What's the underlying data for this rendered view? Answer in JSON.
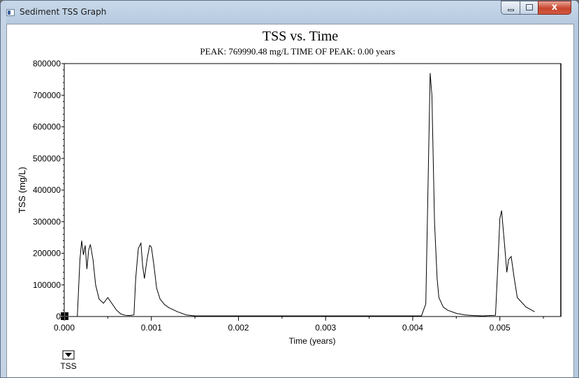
{
  "window": {
    "title": "Sediment TSS Graph",
    "controls": {
      "minimize": "minimize",
      "maximize": "maximize",
      "close": "x"
    }
  },
  "chart_data": {
    "type": "line",
    "title": "TSS vs. Time",
    "subtitle": "PEAK: 769990.48 mg/L  TIME OF PEAK: 0.00 years",
    "xlabel": "Time (years)",
    "ylabel": "TSS (mg/L)",
    "xlim": [
      0.0,
      0.0057
    ],
    "ylim": [
      0,
      800000
    ],
    "x_ticks": [
      "0.000",
      "0.001",
      "0.002",
      "0.003",
      "0.004",
      "0.005"
    ],
    "x_tick_values": [
      0.0,
      0.001,
      0.002,
      0.003,
      0.004,
      0.005
    ],
    "y_ticks": [
      "0",
      "100000",
      "200000",
      "300000",
      "400000",
      "500000",
      "600000",
      "700000",
      "800000"
    ],
    "y_tick_values": [
      0,
      100000,
      200000,
      300000,
      400000,
      500000,
      600000,
      700000,
      800000
    ],
    "grid": false,
    "legend": {
      "entries": [
        "TSS"
      ],
      "placement": "bottom-left"
    },
    "series": [
      {
        "name": "TSS",
        "color": "#000000",
        "x": [
          0.0,
          0.00015,
          0.00018,
          0.0002,
          0.00022,
          0.00024,
          0.00026,
          0.00028,
          0.0003,
          0.00033,
          0.00036,
          0.0004,
          0.00045,
          0.0005,
          0.00055,
          0.0006,
          0.00065,
          0.0007,
          0.00075,
          0.0008,
          0.00082,
          0.00085,
          0.00088,
          0.0009,
          0.00092,
          0.00095,
          0.00098,
          0.001,
          0.00103,
          0.00106,
          0.0011,
          0.00115,
          0.0012,
          0.0013,
          0.0014,
          0.0015,
          0.0016,
          0.0025,
          0.0035,
          0.0041,
          0.00415,
          0.0042,
          0.00422,
          0.00425,
          0.00428,
          0.0043,
          0.00435,
          0.0044,
          0.0045,
          0.0046,
          0.0047,
          0.0048,
          0.00495,
          0.00498,
          0.005,
          0.00502,
          0.00505,
          0.00508,
          0.0051,
          0.00513,
          0.00516,
          0.0052,
          0.0053,
          0.0054
        ],
        "y": [
          0,
          0,
          180000,
          240000,
          195000,
          225000,
          150000,
          210000,
          228000,
          180000,
          100000,
          55000,
          42000,
          60000,
          40000,
          20000,
          8000,
          4000,
          3000,
          5000,
          120000,
          215000,
          232000,
          160000,
          120000,
          180000,
          225000,
          220000,
          160000,
          90000,
          55000,
          38000,
          28000,
          15000,
          5000,
          2000,
          2000,
          2000,
          2000,
          2000,
          40000,
          769990,
          700000,
          300000,
          120000,
          60000,
          30000,
          20000,
          10000,
          5000,
          3000,
          2000,
          4000,
          180000,
          310000,
          335000,
          240000,
          140000,
          180000,
          190000,
          130000,
          60000,
          30000,
          15000
        ]
      }
    ]
  }
}
